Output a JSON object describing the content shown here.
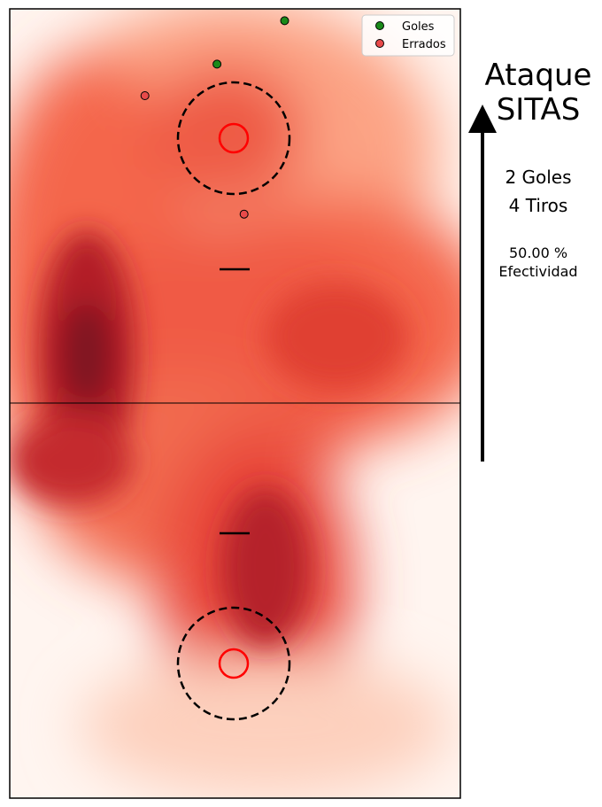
{
  "panel": {
    "title_line1": "Ataque",
    "title_line2": "SITAS",
    "goals_text": "2 Goles",
    "shots_text": "4 Tiros",
    "pct_text": "50.00 %",
    "eff_label": "Efectividad"
  },
  "chart_data": {
    "type": "scatter",
    "title": "",
    "xlim": [
      0,
      1
    ],
    "ylim": [
      0,
      1
    ],
    "grid": false,
    "legend_placement": "top-right",
    "background": "heatmap (Reds colormap density)",
    "series": [
      {
        "name": "Goles",
        "color": "#1a8a1a",
        "points": [
          {
            "x": 0.61,
            "y": 0.985
          },
          {
            "x": 0.46,
            "y": 0.93
          }
        ]
      },
      {
        "name": "Errados",
        "color": "#e84a4a",
        "points": [
          {
            "x": 0.3,
            "y": 0.89
          },
          {
            "x": 0.52,
            "y": 0.74
          }
        ]
      }
    ]
  },
  "colors": {
    "heat_light": "#fff5f0",
    "heat_mid": "#f06048",
    "heat_dark": "#7e1624",
    "hoop": "#ff0000",
    "goal_marker": "#1a8a1a",
    "miss_marker": "#e84a4a"
  }
}
